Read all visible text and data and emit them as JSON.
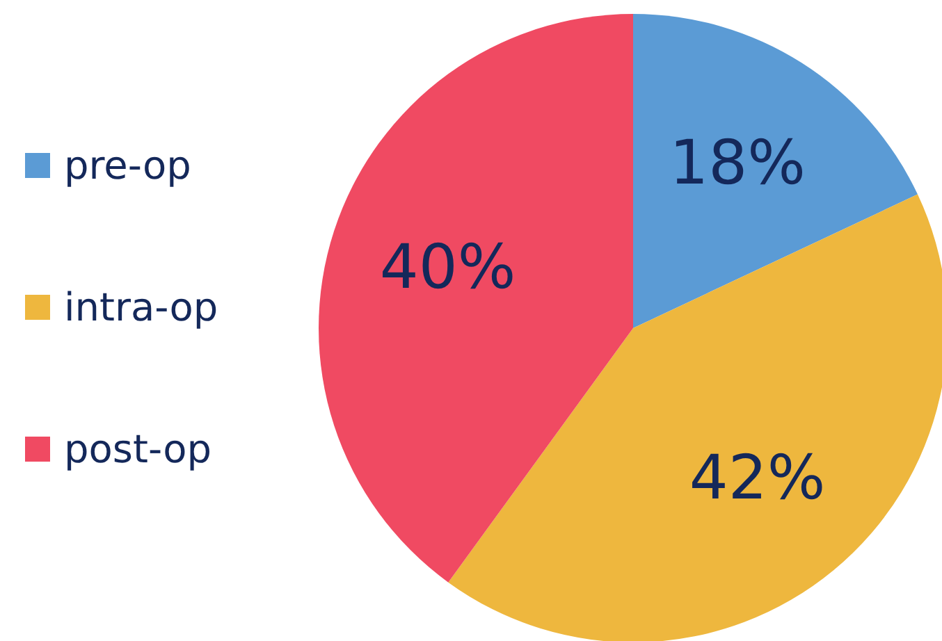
{
  "chart_data": {
    "type": "pie",
    "categories": [
      "pre-op",
      "intra-op",
      "post-op"
    ],
    "values": [
      18,
      42,
      40
    ],
    "colors": [
      "#5b9bd5",
      "#eeb73e",
      "#f04a62"
    ],
    "value_labels": [
      "18%",
      "42%",
      "40%"
    ],
    "legend": "left"
  }
}
